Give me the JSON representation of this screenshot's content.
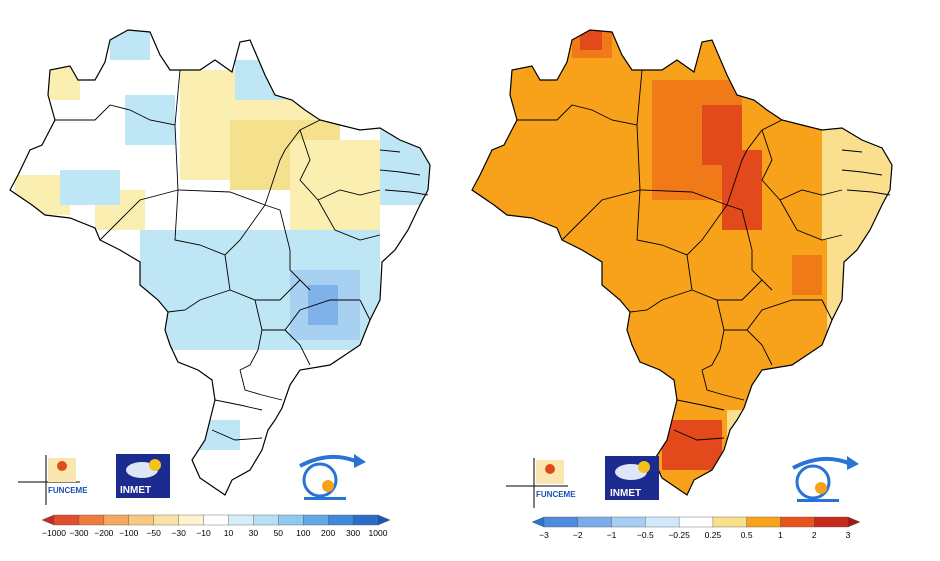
{
  "maps": [
    {
      "panel": "left",
      "colors": {
        "base": "#ffffff",
        "light_yellow": "#faefb0",
        "yellow": "#f5e08e",
        "light_blue": "#bfe6f4",
        "blue": "#a8d0f0",
        "mid_blue": "#7fb2e8",
        "accent_red": "#d7301f"
      },
      "legend": {
        "labels": [
          "−1000",
          "−300",
          "−200",
          "−100",
          "−50",
          "−30",
          "−10",
          "10",
          "30",
          "50",
          "100",
          "200",
          "300",
          "1000"
        ],
        "colors": [
          "#c62828",
          "#e04f2c",
          "#ee7a3c",
          "#f5a860",
          "#f8c880",
          "#fbe3a8",
          "#fff3cf",
          "#ffffff",
          "#d6eef9",
          "#b5e0f5",
          "#8ec9ef",
          "#62a9e6",
          "#3f89d9",
          "#2a6cc8",
          "#1b55b5"
        ]
      },
      "logos": {
        "left": "FUNCEME",
        "center": "INMET",
        "right_icon": "inpe-logo-icon"
      }
    },
    {
      "panel": "right",
      "colors": {
        "base": "#f7a21a",
        "dark_orange": "#f07a18",
        "light_yellow": "#f9df8e",
        "red": "#e34a1b"
      },
      "legend": {
        "labels": [
          "−3",
          "−2",
          "−1",
          "−0.5",
          "−0.25",
          "0.25",
          "0.5",
          "1",
          "2",
          "3"
        ],
        "colors": [
          "#2a73d6",
          "#4f8ce0",
          "#79aeea",
          "#a6cdf3",
          "#d2e8f8",
          "#ffffff",
          "#f9e08a",
          "#f7a21a",
          "#e8541b",
          "#c8281a",
          "#9e1b14"
        ]
      },
      "logos": {
        "left": "FUNCEME",
        "center": "INMET",
        "right_icon": "inpe-logo-icon"
      }
    }
  ]
}
